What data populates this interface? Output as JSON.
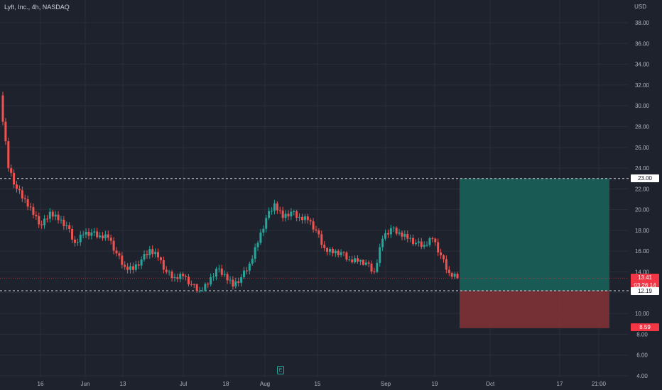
{
  "legend": {
    "title": "Lyft, Inc., 4h, NASDAQ",
    "currency": "USD"
  },
  "chart_data": {
    "type": "candlestick",
    "symbol": "Lyft, Inc.",
    "interval": "4h",
    "exchange": "NASDAQ",
    "y_axis": {
      "ticks": [
        "38.00",
        "36.00",
        "34.00",
        "32.00",
        "30.00",
        "28.00",
        "26.00",
        "24.00",
        "22.00",
        "20.00",
        "18.00",
        "16.00",
        "14.00",
        "12.00",
        "10.00",
        "8.00",
        "6.00",
        "4.00"
      ],
      "ylim": [
        4,
        40
      ]
    },
    "x_axis": {
      "ticks": [
        "16",
        "Jun",
        "13",
        "Jul",
        "18",
        "Aug",
        "15",
        "Sep",
        "19",
        "Oct",
        "17",
        "21:00"
      ]
    },
    "horizontal_lines": [
      {
        "price": 23.0,
        "label": "23.00"
      },
      {
        "price": 12.19,
        "label": "12.19"
      }
    ],
    "last_price": {
      "price": "13.41",
      "countdown": "03:26:14"
    },
    "position": {
      "entry": 12.19,
      "take_profit": 23.0,
      "stop_loss": 8.59,
      "stop_label": "8.59"
    },
    "candles_approx": [
      [
        31,
        32,
        22,
        24
      ],
      [
        24,
        24.5,
        20,
        22
      ],
      [
        22,
        23,
        20.5,
        21
      ],
      [
        21,
        21.5,
        18,
        19.5
      ],
      [
        19.5,
        20,
        17.2,
        18.5
      ],
      [
        18.5,
        20.2,
        18,
        19.8
      ],
      [
        19.8,
        20,
        18.5,
        19
      ],
      [
        19,
        20.2,
        17.8,
        18.5
      ],
      [
        18.5,
        18.8,
        16.2,
        16.8
      ],
      [
        16.8,
        18,
        16.5,
        17.6
      ],
      [
        17.6,
        18.2,
        17,
        17.8
      ],
      [
        17.8,
        18.4,
        17.2,
        17.5
      ],
      [
        17.5,
        18,
        17,
        17.3
      ],
      [
        17.3,
        17.6,
        15.5,
        15.8
      ],
      [
        15.8,
        16,
        14.2,
        14.5
      ],
      [
        14.5,
        15.2,
        13.8,
        14.2
      ],
      [
        14.2,
        15.5,
        14,
        15.2
      ],
      [
        15.2,
        16.5,
        15,
        16.2
      ],
      [
        16.2,
        16.8,
        15,
        15.4
      ],
      [
        15.4,
        15.5,
        13.8,
        14
      ],
      [
        14,
        14.2,
        13,
        13.5
      ],
      [
        13.5,
        14,
        13,
        13.6
      ],
      [
        13.6,
        13.8,
        12.6,
        12.8
      ],
      [
        12.8,
        12.9,
        12,
        12.2
      ],
      [
        12.2,
        13,
        12.1,
        12.8
      ],
      [
        12.8,
        14.5,
        12.6,
        14.3
      ],
      [
        14.3,
        14.8,
        13.5,
        13.8
      ],
      [
        13.8,
        14,
        12.3,
        12.6
      ],
      [
        12.6,
        13.8,
        12.4,
        13.5
      ],
      [
        13.5,
        15,
        13.3,
        14.8
      ],
      [
        14.8,
        17,
        14.6,
        16.8
      ],
      [
        16.8,
        19.5,
        16.6,
        19.2
      ],
      [
        19.2,
        21.5,
        19,
        20.6
      ],
      [
        20.6,
        20.8,
        18.8,
        19.2
      ],
      [
        19.2,
        20.2,
        18.8,
        19.8
      ],
      [
        19.8,
        20,
        18.8,
        19.3
      ],
      [
        19.3,
        19.6,
        18.6,
        19
      ],
      [
        19,
        19.2,
        17.8,
        18
      ],
      [
        18,
        18.2,
        16,
        16.3
      ],
      [
        16.3,
        16.4,
        15.5,
        15.8
      ],
      [
        15.8,
        16.2,
        15.4,
        15.9
      ],
      [
        15.9,
        16,
        15,
        15.2
      ],
      [
        15.2,
        15.6,
        14.8,
        15
      ],
      [
        15,
        15.2,
        14.6,
        14.9
      ],
      [
        14.9,
        15.1,
        13.8,
        14
      ],
      [
        14,
        17.5,
        13.9,
        17.2
      ],
      [
        17.2,
        18.6,
        17,
        18.2
      ],
      [
        18.2,
        18.4,
        17.5,
        17.8
      ],
      [
        17.8,
        18,
        16.8,
        17.2
      ],
      [
        17.2,
        17.6,
        16.5,
        16.8
      ],
      [
        16.8,
        17.4,
        16.2,
        16.6
      ],
      [
        16.6,
        17.4,
        16.4,
        17.2
      ],
      [
        17.2,
        17.3,
        15.2,
        15.6
      ],
      [
        15.6,
        15.7,
        13.6,
        13.9
      ],
      [
        13.9,
        14,
        13.3,
        13.41
      ]
    ]
  }
}
